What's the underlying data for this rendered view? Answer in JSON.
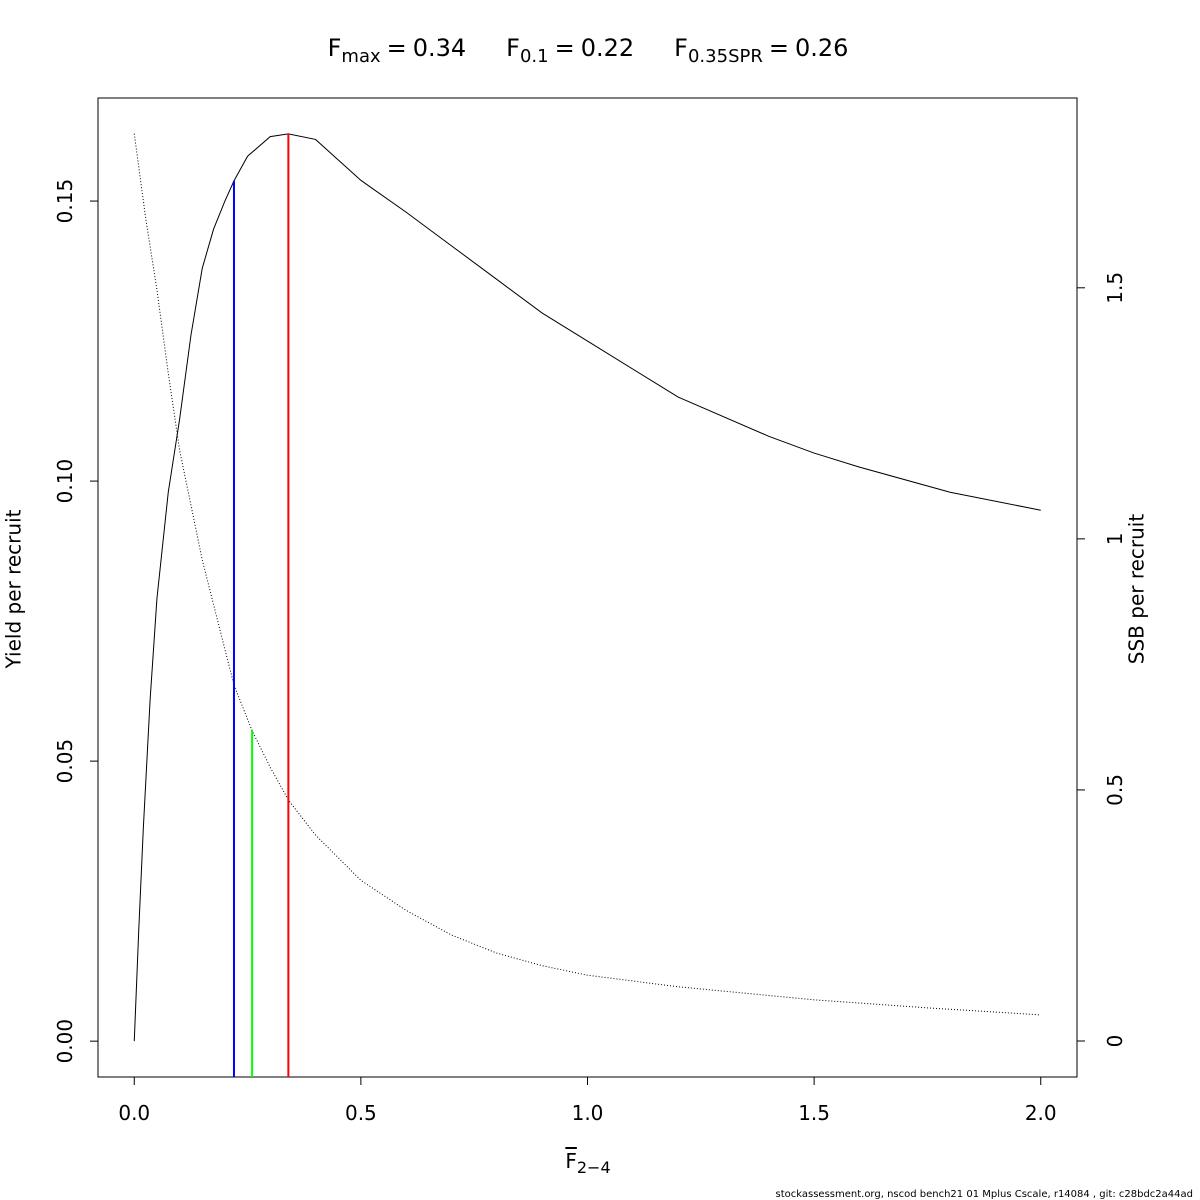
{
  "chart_data": {
    "type": "line",
    "title": [
      {
        "symbol": "F",
        "subscript": "max",
        "relation": "=",
        "value": 0.34
      },
      {
        "symbol": "F",
        "subscript": "0.1",
        "relation": "=",
        "value": 0.22
      },
      {
        "symbol": "F",
        "subscript": "0.35SPR",
        "relation": "=",
        "value": 0.26
      }
    ],
    "xlabel": {
      "symbol": "F",
      "subscript": "2−4",
      "overline": true
    },
    "ylabel": "Yield per recruit",
    "y2label": "SSB per recruit",
    "footer": "stockassessment.org, nscod bench21 01 Mplus Cscale, r14084 , git: c28bdc2a44ad",
    "xlim": [
      -0.08,
      2.08
    ],
    "xticks": [
      {
        "value": 0,
        "label": "0.0"
      },
      0.5,
      {
        "value": 1,
        "label": "1.0"
      },
      1.5,
      {
        "value": 2,
        "label": "2.0"
      }
    ],
    "ylim": [
      -0.0064,
      0.1684
    ],
    "yticks": [
      {
        "value": 0,
        "label": "0.00"
      },
      0.05,
      {
        "value": 0.1,
        "label": "0.10"
      },
      0.15
    ],
    "y2lim": [
      -0.0717,
      1.878
    ],
    "y2ticks": [
      0,
      0.5,
      1,
      1.5
    ],
    "series": [
      {
        "color": "#000000",
        "dash": false,
        "axis": "y",
        "x": [
          0,
          0.01,
          0.02,
          0.035,
          0.05,
          0.075,
          0.1,
          0.125,
          0.15,
          0.175,
          0.2,
          0.22,
          0.25,
          0.3,
          0.34,
          0.4,
          0.5,
          0.6,
          0.7,
          0.8,
          0.9,
          1.0,
          1.2,
          1.4,
          1.5,
          1.6,
          1.8,
          2.0
        ],
        "values": [
          0,
          0.02,
          0.038,
          0.061,
          0.079,
          0.098,
          0.111,
          0.126,
          0.138,
          0.145,
          0.15,
          0.1536,
          0.158,
          0.1615,
          0.162,
          0.161,
          0.1537,
          0.148,
          0.142,
          0.136,
          0.13,
          0.125,
          0.115,
          0.108,
          0.105,
          0.1025,
          0.098,
          0.0948
        ]
      },
      {
        "color": "#000000",
        "dash": true,
        "axis": "y2",
        "x": [
          0,
          0.025,
          0.05,
          0.075,
          0.1,
          0.15,
          0.2,
          0.22,
          0.26,
          0.3,
          0.34,
          0.4,
          0.5,
          0.6,
          0.7,
          0.8,
          0.9,
          1.0,
          1.2,
          1.5,
          1.75,
          2.0
        ],
        "values": [
          1.807,
          1.64,
          1.496,
          1.33,
          1.177,
          0.958,
          0.78,
          0.709,
          0.618,
          0.545,
          0.48,
          0.41,
          0.32,
          0.26,
          0.211,
          0.175,
          0.15,
          0.131,
          0.108,
          0.082,
          0.066,
          0.052
        ]
      }
    ],
    "reference_lines": [
      {
        "x": 0.22,
        "top": 0.1536,
        "axis": "y",
        "color": "#0000ff"
      },
      {
        "x": 0.26,
        "top": 0.618,
        "axis": "y2",
        "color": "#00ff00"
      },
      {
        "x": 0.34,
        "top": 0.162,
        "axis": "y",
        "color": "#ff0000"
      }
    ]
  }
}
